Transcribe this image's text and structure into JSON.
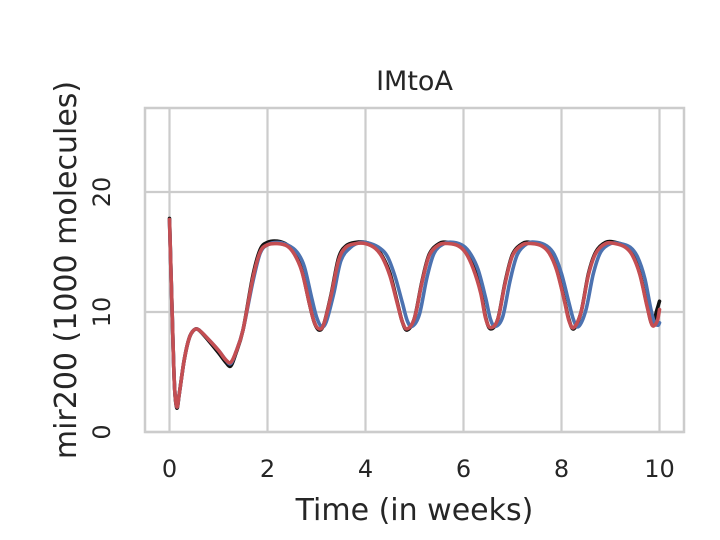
{
  "chart_data": {
    "type": "line",
    "title": "IMtoA",
    "xlabel": "Time (in weeks)",
    "ylabel": "mir200 (1000 molecules)",
    "xlim": [
      -0.5,
      10.5
    ],
    "ylim": [
      0,
      27
    ],
    "xticks": [
      0,
      2,
      4,
      6,
      8,
      10
    ],
    "yticks": [
      0,
      10,
      20
    ],
    "grid": true,
    "legend": "none",
    "series": [
      {
        "color": "#111111",
        "x": [
          0,
          0.05,
          0.1,
          0.15,
          0.2,
          0.3,
          0.4,
          0.5,
          0.6,
          0.8,
          1.0,
          1.15,
          1.25,
          1.35,
          1.5,
          1.7,
          1.85,
          2.0,
          2.2,
          2.4,
          2.55,
          2.7,
          2.85,
          2.95,
          3.05,
          3.15,
          3.3,
          3.45,
          3.6,
          3.8,
          4.0,
          4.2,
          4.35,
          4.5,
          4.65,
          4.75,
          4.85,
          5.0,
          5.15,
          5.3,
          5.5,
          5.7,
          5.9,
          6.05,
          6.2,
          6.35,
          6.45,
          6.55,
          6.7,
          6.85,
          7.0,
          7.2,
          7.4,
          7.6,
          7.75,
          7.9,
          8.05,
          8.15,
          8.25,
          8.4,
          8.55,
          8.7,
          8.9,
          9.1,
          9.3,
          9.45,
          9.6,
          9.75,
          9.85,
          9.95,
          10.0
        ],
        "y": [
          17.8,
          10.5,
          4.0,
          2.0,
          3.2,
          6.0,
          7.8,
          8.5,
          8.5,
          7.6,
          6.6,
          5.8,
          5.5,
          6.5,
          8.5,
          13.0,
          15.2,
          15.8,
          15.9,
          15.6,
          14.9,
          13.5,
          10.8,
          9.2,
          8.5,
          9.0,
          11.5,
          14.5,
          15.5,
          15.8,
          15.8,
          15.4,
          14.6,
          13.2,
          10.8,
          9.2,
          8.5,
          9.5,
          12.5,
          14.8,
          15.7,
          15.8,
          15.6,
          15.0,
          13.8,
          11.8,
          9.6,
          8.6,
          9.4,
          12.5,
          14.8,
          15.7,
          15.8,
          15.6,
          15.0,
          13.6,
          11.2,
          9.4,
          8.6,
          10.0,
          13.2,
          15.0,
          15.8,
          15.8,
          15.5,
          14.8,
          13.2,
          10.5,
          9.0,
          10.2,
          10.9
        ]
      },
      {
        "color": "#4c72b0",
        "x": [
          0,
          0.05,
          0.1,
          0.15,
          0.2,
          0.3,
          0.4,
          0.5,
          0.6,
          0.8,
          1.0,
          1.15,
          1.25,
          1.35,
          1.5,
          1.7,
          1.85,
          2.0,
          2.2,
          2.4,
          2.6,
          2.75,
          2.9,
          3.0,
          3.1,
          3.2,
          3.35,
          3.5,
          3.7,
          3.9,
          4.1,
          4.3,
          4.45,
          4.6,
          4.75,
          4.85,
          4.95,
          5.1,
          5.25,
          5.4,
          5.6,
          5.8,
          6.0,
          6.15,
          6.3,
          6.45,
          6.55,
          6.65,
          6.8,
          6.95,
          7.1,
          7.3,
          7.5,
          7.7,
          7.85,
          8.0,
          8.15,
          8.25,
          8.35,
          8.5,
          8.65,
          8.8,
          9.0,
          9.2,
          9.4,
          9.55,
          9.7,
          9.82,
          9.9,
          9.97,
          10.0
        ],
        "y": [
          17.6,
          10.5,
          4.0,
          2.1,
          3.2,
          6.0,
          7.8,
          8.5,
          8.5,
          7.7,
          6.8,
          6.0,
          5.7,
          6.6,
          8.5,
          12.5,
          14.9,
          15.6,
          15.8,
          15.6,
          15.0,
          13.8,
          11.2,
          9.6,
          8.8,
          9.2,
          11.5,
          14.3,
          15.4,
          15.8,
          15.7,
          15.3,
          14.6,
          13.0,
          10.8,
          9.3,
          8.8,
          9.8,
          12.8,
          14.9,
          15.7,
          15.8,
          15.5,
          14.8,
          13.5,
          11.2,
          9.4,
          8.8,
          9.6,
          12.6,
          14.8,
          15.7,
          15.8,
          15.5,
          14.8,
          13.2,
          10.8,
          9.3,
          8.8,
          10.2,
          13.2,
          15.0,
          15.7,
          15.7,
          15.4,
          14.6,
          12.8,
          10.3,
          9.1,
          8.9,
          9.1
        ]
      },
      {
        "color": "#c44e52",
        "x": [
          0,
          0.05,
          0.1,
          0.15,
          0.2,
          0.3,
          0.4,
          0.5,
          0.6,
          0.8,
          1.0,
          1.15,
          1.25,
          1.35,
          1.5,
          1.7,
          1.85,
          2.0,
          2.2,
          2.4,
          2.55,
          2.7,
          2.85,
          2.95,
          3.05,
          3.15,
          3.3,
          3.45,
          3.6,
          3.8,
          4.0,
          4.2,
          4.35,
          4.5,
          4.65,
          4.75,
          4.85,
          5.0,
          5.15,
          5.3,
          5.5,
          5.7,
          5.9,
          6.05,
          6.2,
          6.35,
          6.45,
          6.55,
          6.7,
          6.85,
          7.0,
          7.2,
          7.4,
          7.6,
          7.75,
          7.9,
          8.05,
          8.15,
          8.25,
          8.4,
          8.55,
          8.7,
          8.9,
          9.1,
          9.3,
          9.45,
          9.6,
          9.75,
          9.85,
          9.95,
          10.0
        ],
        "y": [
          17.7,
          10.5,
          4.0,
          2.1,
          3.2,
          6.0,
          7.8,
          8.5,
          8.5,
          7.7,
          6.8,
          6.0,
          5.8,
          6.6,
          8.5,
          12.8,
          15.0,
          15.6,
          15.7,
          15.5,
          14.8,
          13.4,
          10.8,
          9.2,
          8.6,
          9.0,
          11.4,
          14.3,
          15.4,
          15.7,
          15.7,
          15.3,
          14.5,
          13.0,
          10.7,
          9.2,
          8.6,
          9.5,
          12.4,
          14.7,
          15.6,
          15.7,
          15.5,
          14.9,
          13.6,
          11.6,
          9.5,
          8.7,
          9.4,
          12.4,
          14.7,
          15.6,
          15.7,
          15.5,
          14.9,
          13.5,
          11.1,
          9.3,
          8.7,
          10.0,
          13.1,
          14.9,
          15.7,
          15.7,
          15.4,
          14.7,
          13.1,
          10.4,
          8.9,
          9.2,
          10.2
        ]
      }
    ]
  }
}
